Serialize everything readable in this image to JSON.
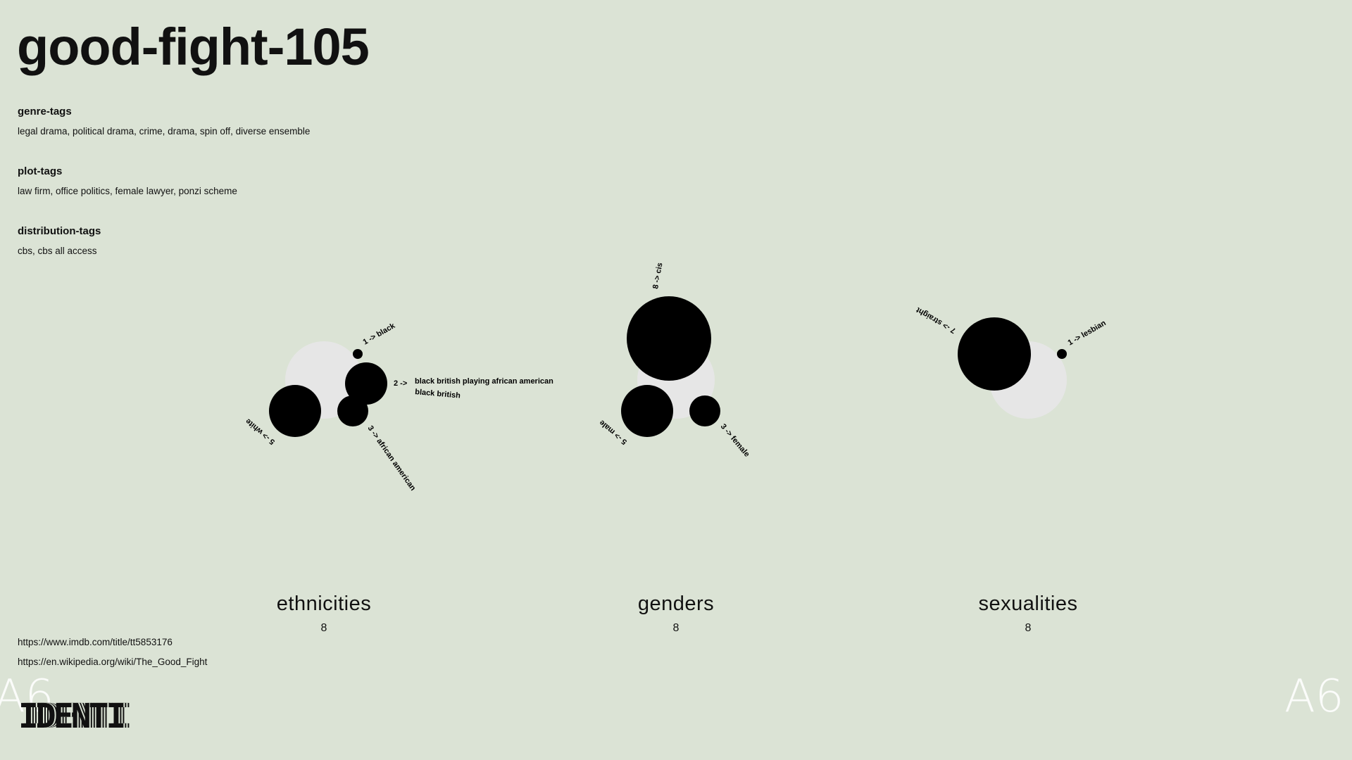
{
  "title": "good-fight-105",
  "tags": {
    "genre": {
      "heading": "genre-tags",
      "values": "legal drama, political drama, crime, drama, spin off, diverse ensemble"
    },
    "plot": {
      "heading": "plot-tags",
      "values": "law firm, office politics, female lawyer, ponzi scheme"
    },
    "distribution": {
      "heading": "distribution-tags",
      "values": "cbs, cbs all access"
    }
  },
  "groups": [
    {
      "label": "ethnicities",
      "count": "8"
    },
    {
      "label": "genders",
      "count": "8"
    },
    {
      "label": "sexualities",
      "count": "8"
    }
  ],
  "chart_data": [
    {
      "type": "bubble",
      "name": "ethnicities",
      "total": 8,
      "items": [
        {
          "count": 1,
          "label": "1 -> black"
        },
        {
          "count": 2,
          "label": "2 ->",
          "sublabels": [
            "black british playing african american",
            "black british"
          ]
        },
        {
          "count": 3,
          "label": "3 -> african american"
        },
        {
          "count": 5,
          "label": "5 -> white"
        }
      ]
    },
    {
      "type": "bubble",
      "name": "genders",
      "total": 8,
      "items": [
        {
          "count": 8,
          "label": "8 -> cis"
        },
        {
          "count": 5,
          "label": "5 -> male"
        },
        {
          "count": 3,
          "label": "3 -> female"
        }
      ]
    },
    {
      "type": "bubble",
      "name": "sexualities",
      "total": 8,
      "items": [
        {
          "count": 7,
          "label": "7 -> straight"
        },
        {
          "count": 1,
          "label": "1 -> lesbian"
        }
      ]
    }
  ],
  "links": {
    "imdb": "https://www.imdb.com/title/tt5853176",
    "wikipedia": "https://en.wikipedia.org/wiki/The_Good_Fight"
  },
  "logo": {
    "text": "IDENTI"
  },
  "mark": {
    "text": "A6"
  },
  "colors": {
    "background": "#dbe3d5",
    "bubble": "#000000",
    "backdrop": "#e6e6e6",
    "text": "#111111"
  }
}
